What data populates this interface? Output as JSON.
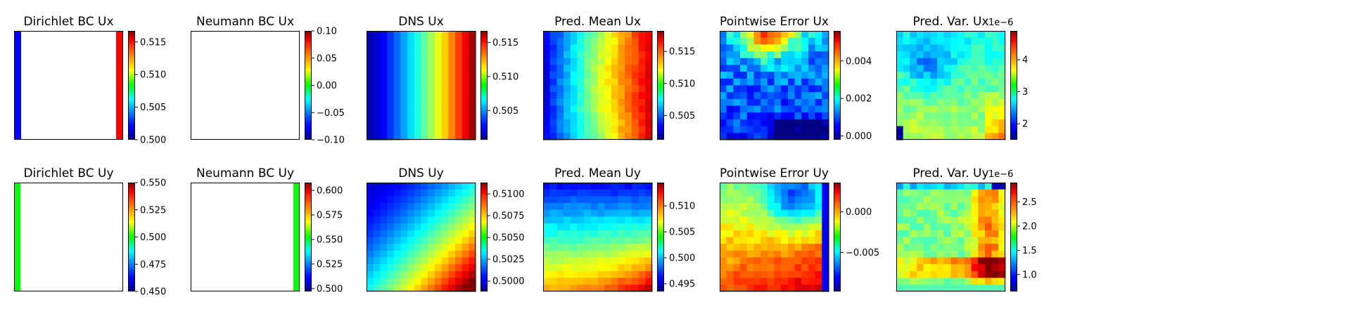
{
  "chart_data": {
    "type": "heatmap",
    "colormap": "jet",
    "grid": false,
    "panels": [
      {
        "title": "Dirichlet BC Ux",
        "row": 0,
        "col": 0,
        "pattern": "dir_ux",
        "vmin": 0.5,
        "vmax": 0.5167,
        "ticks": [
          "0.515",
          "0.510",
          "0.505",
          "0.500"
        ],
        "tick_values": [
          0.515,
          0.51,
          0.505,
          0.5
        ],
        "offset": ""
      },
      {
        "title": "Neumann BC Ux",
        "row": 0,
        "col": 1,
        "pattern": "blank",
        "vmin": -0.1,
        "vmax": 0.1,
        "ticks": [
          "0.10",
          "0.05",
          "0.00",
          "−0.05",
          "−0.10"
        ],
        "tick_values": [
          0.1,
          0.05,
          0.0,
          -0.05,
          -0.1
        ],
        "offset": ""
      },
      {
        "title": "DNS Ux",
        "row": 0,
        "col": 2,
        "pattern": "dns_ux",
        "vmin": 0.5007,
        "vmax": 0.5167,
        "ticks": [
          "0.515",
          "0.510",
          "0.505"
        ],
        "tick_values": [
          0.515,
          0.51,
          0.505
        ],
        "offset": ""
      },
      {
        "title": "Pred. Mean Ux",
        "row": 0,
        "col": 3,
        "pattern": "pm_ux",
        "vmin": 0.5012,
        "vmax": 0.5182,
        "ticks": [
          "0.515",
          "0.510",
          "0.505"
        ],
        "tick_values": [
          0.515,
          0.51,
          0.505
        ],
        "offset": ""
      },
      {
        "title": "Pointwise Error Ux",
        "row": 0,
        "col": 4,
        "pattern": "err_ux",
        "vmin": -0.0002,
        "vmax": 0.0056,
        "ticks": [
          "0.004",
          "0.002",
          "0.000"
        ],
        "tick_values": [
          0.004,
          0.002,
          0.0
        ],
        "offset": ""
      },
      {
        "title": "Pred. Var. Ux",
        "row": 0,
        "col": 5,
        "pattern": "var_ux",
        "vmin": 1.5,
        "vmax": 4.9,
        "ticks": [
          "4",
          "3",
          "2"
        ],
        "tick_values": [
          4,
          3,
          2
        ],
        "offset": "1e−6"
      },
      {
        "title": "Dirichlet BC Uy",
        "row": 1,
        "col": 0,
        "pattern": "dir_uy",
        "vmin": 0.45,
        "vmax": 0.55,
        "ticks": [
          "0.550",
          "0.525",
          "0.500",
          "0.475",
          "0.450"
        ],
        "tick_values": [
          0.55,
          0.525,
          0.5,
          0.475,
          0.45
        ],
        "offset": ""
      },
      {
        "title": "Neumann BC Uy",
        "row": 1,
        "col": 1,
        "pattern": "neu_uy",
        "vmin": 0.497,
        "vmax": 0.608,
        "ticks": [
          "0.600",
          "0.575",
          "0.550",
          "0.525",
          "0.500"
        ],
        "tick_values": [
          0.6,
          0.575,
          0.55,
          0.525,
          0.5
        ],
        "offset": ""
      },
      {
        "title": "DNS Uy",
        "row": 1,
        "col": 2,
        "pattern": "dns_uy",
        "vmin": 0.4988,
        "vmax": 0.5113,
        "ticks": [
          "0.5100",
          "0.5075",
          "0.5050",
          "0.5025",
          "0.5000"
        ],
        "tick_values": [
          0.51,
          0.5075,
          0.505,
          0.5025,
          0.5
        ],
        "offset": ""
      },
      {
        "title": "Pred. Mean Uy",
        "row": 1,
        "col": 3,
        "pattern": "pm_uy",
        "vmin": 0.4935,
        "vmax": 0.5145,
        "ticks": [
          "0.510",
          "0.505",
          "0.500",
          "0.495"
        ],
        "tick_values": [
          0.51,
          0.505,
          0.5,
          0.495
        ],
        "offset": ""
      },
      {
        "title": "Pointwise Error Uy",
        "row": 1,
        "col": 4,
        "pattern": "err_uy",
        "vmin": -0.0098,
        "vmax": 0.0036,
        "ticks": [
          "0.000",
          "−0.005"
        ],
        "tick_values": [
          0.0,
          -0.005
        ],
        "offset": ""
      },
      {
        "title": "Pred. Var. Uy",
        "row": 1,
        "col": 5,
        "pattern": "var_uy",
        "vmin": 0.65,
        "vmax": 2.9,
        "ticks": [
          "2.5",
          "2.0",
          "1.5",
          "1.0"
        ],
        "tick_values": [
          2.5,
          2.0,
          1.5,
          1.0
        ],
        "offset": "1e−6"
      }
    ]
  }
}
